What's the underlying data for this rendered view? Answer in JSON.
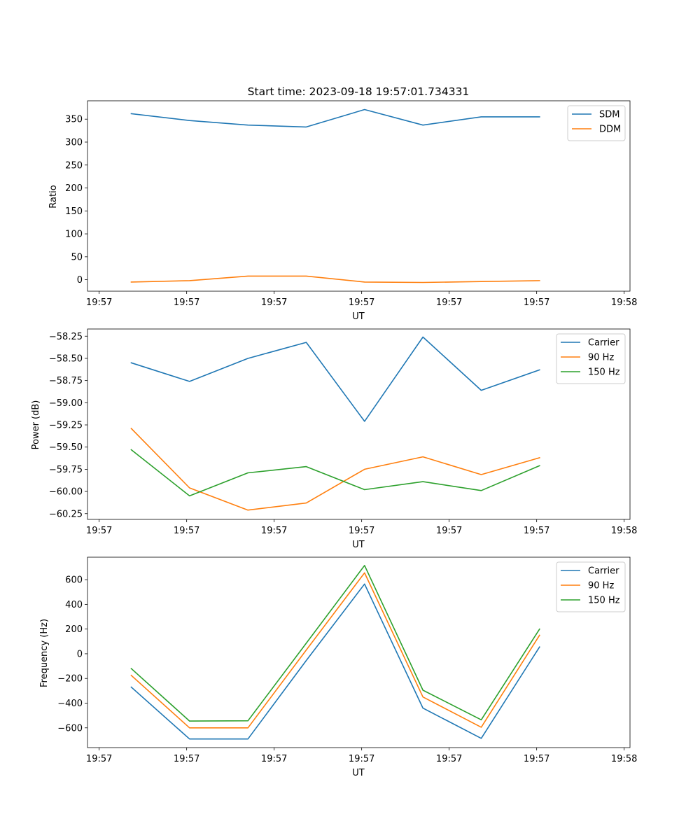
{
  "chart_data": [
    {
      "type": "line",
      "title": "Start time: 2023-09-18 19:57:01.734331",
      "xlabel": "UT",
      "ylabel": "Ratio",
      "x_tick_labels": [
        "19:57",
        "19:57",
        "19:57",
        "19:57",
        "19:57",
        "19:57",
        "19:58"
      ],
      "y_ticks": [
        0,
        50,
        100,
        150,
        200,
        250,
        300,
        350
      ],
      "y_tick_labels": [
        "0",
        "50",
        "100",
        "150",
        "200",
        "250",
        "300",
        "350"
      ],
      "ylim": [
        -25,
        390
      ],
      "xlim": [
        -0.2,
        9.1
      ],
      "x": [
        0.55,
        1.55,
        2.55,
        3.55,
        4.55,
        5.55,
        6.55,
        7.55
      ],
      "legend_position": "top-right",
      "series": [
        {
          "name": "SDM",
          "color": "#1f77b4",
          "values": [
            362,
            347,
            337,
            333,
            371,
            337,
            355,
            355
          ]
        },
        {
          "name": "DDM",
          "color": "#ff7f0e",
          "values": [
            -5,
            -2,
            8,
            8,
            -5,
            -6,
            -4,
            -2
          ]
        }
      ]
    },
    {
      "type": "line",
      "title": "",
      "xlabel": "UT",
      "ylabel": "Power (dB)",
      "x_tick_labels": [
        "19:57",
        "19:57",
        "19:57",
        "19:57",
        "19:57",
        "19:57",
        "19:58"
      ],
      "y_ticks": [
        -60.25,
        -60.0,
        -59.75,
        -59.5,
        -59.25,
        -59.0,
        -58.75,
        -58.5,
        -58.25
      ],
      "y_tick_labels": [
        "−60.25",
        "−60.00",
        "−59.75",
        "−59.50",
        "−59.25",
        "−59.00",
        "−58.75",
        "−58.50",
        "−58.25"
      ],
      "ylim": [
        -60.315,
        -58.169
      ],
      "xlim": [
        -0.2,
        9.1
      ],
      "x": [
        0.55,
        1.55,
        2.55,
        3.55,
        4.55,
        5.55,
        6.55,
        7.55
      ],
      "legend_position": "top-right",
      "series": [
        {
          "name": "Carrier",
          "color": "#1f77b4",
          "values": [
            -58.55,
            -58.76,
            -58.5,
            -58.32,
            -59.21,
            -58.26,
            -58.86,
            -58.63
          ]
        },
        {
          "name": "90 Hz",
          "color": "#ff7f0e",
          "values": [
            -59.29,
            -59.96,
            -60.21,
            -60.13,
            -59.75,
            -59.61,
            -59.81,
            -59.62
          ]
        },
        {
          "name": "150 Hz",
          "color": "#2ca02c",
          "values": [
            -59.53,
            -60.05,
            -59.79,
            -59.72,
            -59.98,
            -59.89,
            -59.99,
            -59.71
          ]
        }
      ]
    },
    {
      "type": "line",
      "title": "",
      "xlabel": "UT",
      "ylabel": "Frequency (Hz)",
      "x_tick_labels": [
        "19:57",
        "19:57",
        "19:57",
        "19:57",
        "19:57",
        "19:57",
        "19:58"
      ],
      "y_ticks": [
        -600,
        -400,
        -200,
        0,
        200,
        400,
        600
      ],
      "y_tick_labels": [
        "−600",
        "−400",
        "−200",
        "0",
        "200",
        "400",
        "600"
      ],
      "ylim": [
        -760,
        782
      ],
      "xlim": [
        -0.2,
        9.1
      ],
      "x": [
        0.55,
        1.55,
        2.55,
        3.55,
        4.55,
        5.55,
        6.55,
        7.55
      ],
      "legend_position": "top-right",
      "series": [
        {
          "name": "Carrier",
          "color": "#1f77b4",
          "values": [
            -270,
            -690,
            -690,
            -55,
            565,
            -440,
            -685,
            55
          ]
        },
        {
          "name": "90 Hz",
          "color": "#ff7f0e",
          "values": [
            -175,
            -600,
            -600,
            30,
            655,
            -350,
            -595,
            150
          ]
        },
        {
          "name": "150 Hz",
          "color": "#2ca02c",
          "values": [
            -120,
            -545,
            -543,
            85,
            715,
            -295,
            -535,
            200
          ]
        }
      ]
    }
  ]
}
